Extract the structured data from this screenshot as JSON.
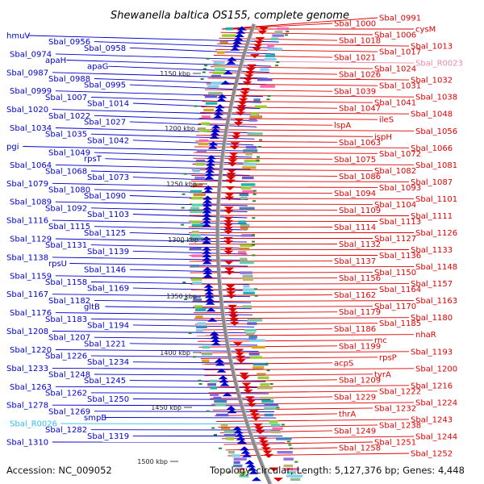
{
  "title": "Shewanella baltica OS155, complete genome",
  "footer": {
    "accession": "Accession: NC_009052",
    "info": "Topology: circular; Length: 5,127,376 bp; Genes: 4,448"
  },
  "colors": {
    "left": "#0000cc",
    "right": "#dd0000",
    "rna_left": "#33bbee",
    "rna_right": "#ee88aa",
    "backbone": "#8a8a8a",
    "tick": "#2a8a2a"
  },
  "kbp_marks": [
    {
      "label": "1150 kbp"
    },
    {
      "label": "1200 kbp"
    },
    {
      "label": "1250 kbp"
    },
    {
      "label": "1300 kbp"
    },
    {
      "label": "1350 kbp"
    },
    {
      "label": "1400 kbp"
    },
    {
      "label": "1450 kbp"
    },
    {
      "label": "1500 kbp"
    }
  ],
  "left_labels": [
    {
      "text": "hmuV",
      "kind": "gene"
    },
    {
      "text": "Sbal_0956",
      "kind": "gene"
    },
    {
      "text": "Sbal_0958",
      "kind": "gene"
    },
    {
      "text": "Sbal_0974",
      "kind": "gene"
    },
    {
      "text": "apaH",
      "kind": "gene"
    },
    {
      "text": "apaG",
      "kind": "gene"
    },
    {
      "text": "Sbal_0987",
      "kind": "gene"
    },
    {
      "text": "Sbal_0988",
      "kind": "gene"
    },
    {
      "text": "Sbal_0995",
      "kind": "gene"
    },
    {
      "text": "Sbal_0999",
      "kind": "gene"
    },
    {
      "text": "Sbal_1007",
      "kind": "gene"
    },
    {
      "text": "Sbal_1014",
      "kind": "gene"
    },
    {
      "text": "Sbal_1020",
      "kind": "gene"
    },
    {
      "text": "Sbal_1022",
      "kind": "gene"
    },
    {
      "text": "Sbal_1027",
      "kind": "gene"
    },
    {
      "text": "Sbal_1034",
      "kind": "gene"
    },
    {
      "text": "Sbal_1035",
      "kind": "gene"
    },
    {
      "text": "Sbal_1042",
      "kind": "gene"
    },
    {
      "text": "pgi",
      "kind": "gene"
    },
    {
      "text": "Sbal_1049",
      "kind": "gene"
    },
    {
      "text": "rpsT",
      "kind": "gene"
    },
    {
      "text": "Sbal_1064",
      "kind": "gene"
    },
    {
      "text": "Sbal_1068",
      "kind": "gene"
    },
    {
      "text": "Sbal_1073",
      "kind": "gene"
    },
    {
      "text": "Sbal_1079",
      "kind": "gene"
    },
    {
      "text": "Sbal_1080",
      "kind": "gene"
    },
    {
      "text": "Sbal_1090",
      "kind": "gene"
    },
    {
      "text": "Sbal_1089",
      "kind": "gene"
    },
    {
      "text": "Sbal_1092",
      "kind": "gene"
    },
    {
      "text": "Sbal_1103",
      "kind": "gene"
    },
    {
      "text": "Sbal_1116",
      "kind": "gene"
    },
    {
      "text": "Sbal_1115",
      "kind": "gene"
    },
    {
      "text": "Sbal_1125",
      "kind": "gene"
    },
    {
      "text": "Sbal_1129",
      "kind": "gene"
    },
    {
      "text": "Sbal_1131",
      "kind": "gene"
    },
    {
      "text": "Sbal_1139",
      "kind": "gene"
    },
    {
      "text": "Sbal_1138",
      "kind": "gene"
    },
    {
      "text": "rpsU",
      "kind": "gene"
    },
    {
      "text": "Sbal_1146",
      "kind": "gene"
    },
    {
      "text": "Sbal_1159",
      "kind": "gene"
    },
    {
      "text": "Sbal_1158",
      "kind": "gene"
    },
    {
      "text": "Sbal_1169",
      "kind": "gene"
    },
    {
      "text": "Sbal_1167",
      "kind": "gene"
    },
    {
      "text": "Sbal_1182",
      "kind": "gene"
    },
    {
      "text": "gltB",
      "kind": "gene"
    },
    {
      "text": "Sbal_1176",
      "kind": "gene"
    },
    {
      "text": "Sbal_1183",
      "kind": "gene"
    },
    {
      "text": "Sbal_1194",
      "kind": "gene"
    },
    {
      "text": "Sbal_1208",
      "kind": "gene"
    },
    {
      "text": "Sbal_1207",
      "kind": "gene"
    },
    {
      "text": "Sbal_1221",
      "kind": "gene"
    },
    {
      "text": "Sbal_1220",
      "kind": "gene"
    },
    {
      "text": "Sbal_1226",
      "kind": "gene"
    },
    {
      "text": "Sbal_1234",
      "kind": "gene"
    },
    {
      "text": "Sbal_1233",
      "kind": "gene"
    },
    {
      "text": "Sbal_1248",
      "kind": "gene"
    },
    {
      "text": "Sbal_1245",
      "kind": "gene"
    },
    {
      "text": "Sbal_1263",
      "kind": "gene"
    },
    {
      "text": "Sbal_1262",
      "kind": "gene"
    },
    {
      "text": "Sbal_1250",
      "kind": "gene"
    },
    {
      "text": "Sbal_1278",
      "kind": "gene"
    },
    {
      "text": "Sbal_1269",
      "kind": "gene"
    },
    {
      "text": "smpB",
      "kind": "gene"
    },
    {
      "text": "Sbal_R0026",
      "kind": "rna"
    },
    {
      "text": "Sbal_1282",
      "kind": "gene"
    },
    {
      "text": "Sbal_1319",
      "kind": "gene"
    },
    {
      "text": "Sbal_1310",
      "kind": "gene"
    }
  ],
  "right_labels": [
    {
      "text": "Sbal_0991",
      "kind": "gene"
    },
    {
      "text": "Sbal_1000",
      "kind": "gene"
    },
    {
      "text": "cysM",
      "kind": "gene"
    },
    {
      "text": "Sbal_1006",
      "kind": "gene"
    },
    {
      "text": "Sbal_1018",
      "kind": "gene"
    },
    {
      "text": "Sbal_1013",
      "kind": "gene"
    },
    {
      "text": "Sbal_1017",
      "kind": "gene"
    },
    {
      "text": "Sbal_1021",
      "kind": "gene"
    },
    {
      "text": "Sbal_R0023",
      "kind": "rna"
    },
    {
      "text": "Sbal_1024",
      "kind": "gene"
    },
    {
      "text": "Sbal_1026",
      "kind": "gene"
    },
    {
      "text": "Sbal_1032",
      "kind": "gene"
    },
    {
      "text": "Sbal_1031",
      "kind": "gene"
    },
    {
      "text": "Sbal_1039",
      "kind": "gene"
    },
    {
      "text": "Sbal_1038",
      "kind": "gene"
    },
    {
      "text": "Sbal_1041",
      "kind": "gene"
    },
    {
      "text": "Sbal_1047",
      "kind": "gene"
    },
    {
      "text": "Sbal_1048",
      "kind": "gene"
    },
    {
      "text": "ileS",
      "kind": "gene"
    },
    {
      "text": "lspA",
      "kind": "gene"
    },
    {
      "text": "Sbal_1056",
      "kind": "gene"
    },
    {
      "text": "ispH",
      "kind": "gene"
    },
    {
      "text": "Sbal_1063",
      "kind": "gene"
    },
    {
      "text": "Sbal_1066",
      "kind": "gene"
    },
    {
      "text": "Sbal_1072",
      "kind": "gene"
    },
    {
      "text": "Sbal_1075",
      "kind": "gene"
    },
    {
      "text": "Sbal_1081",
      "kind": "gene"
    },
    {
      "text": "Sbal_1082",
      "kind": "gene"
    },
    {
      "text": "Sbal_1086",
      "kind": "gene"
    },
    {
      "text": "Sbal_1087",
      "kind": "gene"
    },
    {
      "text": "Sbal_1093",
      "kind": "gene"
    },
    {
      "text": "Sbal_1094",
      "kind": "gene"
    },
    {
      "text": "Sbal_1101",
      "kind": "gene"
    },
    {
      "text": "Sbal_1104",
      "kind": "gene"
    },
    {
      "text": "Sbal_1109",
      "kind": "gene"
    },
    {
      "text": "Sbal_1111",
      "kind": "gene"
    },
    {
      "text": "Sbal_1113",
      "kind": "gene"
    },
    {
      "text": "Sbal_1114",
      "kind": "gene"
    },
    {
      "text": "Sbal_1126",
      "kind": "gene"
    },
    {
      "text": "Sbal_1127",
      "kind": "gene"
    },
    {
      "text": "Sbal_1132",
      "kind": "gene"
    },
    {
      "text": "Sbal_1133",
      "kind": "gene"
    },
    {
      "text": "Sbal_1136",
      "kind": "gene"
    },
    {
      "text": "Sbal_1137",
      "kind": "gene"
    },
    {
      "text": "Sbal_1148",
      "kind": "gene"
    },
    {
      "text": "Sbal_1150",
      "kind": "gene"
    },
    {
      "text": "Sbal_1156",
      "kind": "gene"
    },
    {
      "text": "Sbal_1157",
      "kind": "gene"
    },
    {
      "text": "Sbal_1164",
      "kind": "gene"
    },
    {
      "text": "Sbal_1162",
      "kind": "gene"
    },
    {
      "text": "Sbal_1163",
      "kind": "gene"
    },
    {
      "text": "Sbal_1170",
      "kind": "gene"
    },
    {
      "text": "Sbal_1179",
      "kind": "gene"
    },
    {
      "text": "Sbal_1180",
      "kind": "gene"
    },
    {
      "text": "Sbal_1185",
      "kind": "gene"
    },
    {
      "text": "Sbal_1186",
      "kind": "gene"
    },
    {
      "text": "nhaR",
      "kind": "gene"
    },
    {
      "text": "rnc",
      "kind": "gene"
    },
    {
      "text": "Sbal_1199",
      "kind": "gene"
    },
    {
      "text": "Sbal_1193",
      "kind": "gene"
    },
    {
      "text": "rpsP",
      "kind": "gene"
    },
    {
      "text": "acpS",
      "kind": "gene"
    },
    {
      "text": "Sbal_1200",
      "kind": "gene"
    },
    {
      "text": "tyrA",
      "kind": "gene"
    },
    {
      "text": "Sbal_1209",
      "kind": "gene"
    },
    {
      "text": "Sbal_1216",
      "kind": "gene"
    },
    {
      "text": "Sbal_1222",
      "kind": "gene"
    },
    {
      "text": "Sbal_1229",
      "kind": "gene"
    },
    {
      "text": "Sbal_1224",
      "kind": "gene"
    },
    {
      "text": "Sbal_1232",
      "kind": "gene"
    },
    {
      "text": "thrA",
      "kind": "gene"
    },
    {
      "text": "Sbal_1243",
      "kind": "gene"
    },
    {
      "text": "Sbal_1238",
      "kind": "gene"
    },
    {
      "text": "Sbal_1249",
      "kind": "gene"
    },
    {
      "text": "Sbal_1244",
      "kind": "gene"
    },
    {
      "text": "Sbal_1251",
      "kind": "gene"
    },
    {
      "text": "Sbal_1258",
      "kind": "gene"
    },
    {
      "text": "Sbal_1252",
      "kind": "gene"
    }
  ]
}
